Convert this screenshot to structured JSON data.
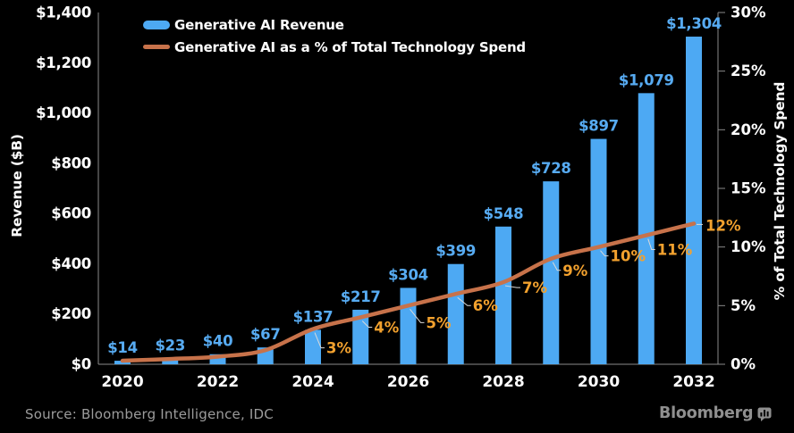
{
  "colors": {
    "background": "#000000",
    "bar_blue": "#4da9f3",
    "bar_label_blue": "#57abf2",
    "line_orange": "#c7724a",
    "pct_label_amber": "#f2a12e",
    "axis_gray": "#8a8a8a",
    "leader_gray": "#d9d9d9",
    "text_white": "#ffffff",
    "muted_gray": "#9c9c9c",
    "brand_gray": "#8f8f8f"
  },
  "legend": {
    "items": [
      {
        "label": "Generative AI Revenue",
        "marker": "bar-swatch"
      },
      {
        "label": "Generative AI as a % of Total Technology Spend",
        "marker": "line-swatch"
      }
    ]
  },
  "chart_data": {
    "type": "bar",
    "title": "",
    "categories": [
      2020,
      2021,
      2022,
      2023,
      2024,
      2025,
      2026,
      2027,
      2028,
      2029,
      2030,
      2031,
      2032
    ],
    "series": [
      {
        "name": "Generative AI Revenue",
        "type": "bar",
        "axis": "left",
        "values": [
          14,
          23,
          40,
          67,
          137,
          217,
          304,
          399,
          548,
          728,
          897,
          1079,
          1304
        ],
        "data_labels": [
          "$14",
          "$23",
          "$40",
          "$67",
          "$137",
          "$217",
          "$304",
          "$399",
          "$548",
          "$728",
          "$897",
          "$1,079",
          "$1,304"
        ]
      },
      {
        "name": "Generative AI as a % of Total Technology Spend",
        "type": "line",
        "axis": "right",
        "values": [
          0.3,
          0.45,
          0.65,
          1.2,
          3,
          4,
          5,
          6,
          7,
          9,
          10,
          11,
          12
        ],
        "data_labels": [
          null,
          null,
          null,
          null,
          "3%",
          "4%",
          "5%",
          "6%",
          "7%",
          "9%",
          "10%",
          "11%",
          "12%"
        ]
      }
    ],
    "left_axis": {
      "title": "Revenue ($B)",
      "range": [
        0,
        1400
      ],
      "tick_values": [
        0,
        200,
        400,
        600,
        800,
        1000,
        1200,
        1400
      ],
      "tick_labels": [
        "$0",
        "$200",
        "$400",
        "$600",
        "$800",
        "$1,000",
        "$1,200",
        "$1,400"
      ]
    },
    "right_axis": {
      "title": "% of Total Technology Spend",
      "range": [
        0,
        30
      ],
      "tick_values": [
        0,
        5,
        10,
        15,
        20,
        25,
        30
      ],
      "tick_labels": [
        "0%",
        "5%",
        "10%",
        "15%",
        "20%",
        "25%",
        "30%"
      ]
    },
    "x_axis": {
      "tick_values": [
        2020,
        2022,
        2024,
        2026,
        2028,
        2030,
        2032
      ],
      "tick_labels": [
        "2020",
        "2022",
        "2024",
        "2026",
        "2028",
        "2030",
        "2032"
      ]
    },
    "legend_position": "top-inside",
    "grid": false
  },
  "source": "Source: Bloomberg Intelligence, IDC",
  "branding": {
    "name": "Bloomberg"
  }
}
